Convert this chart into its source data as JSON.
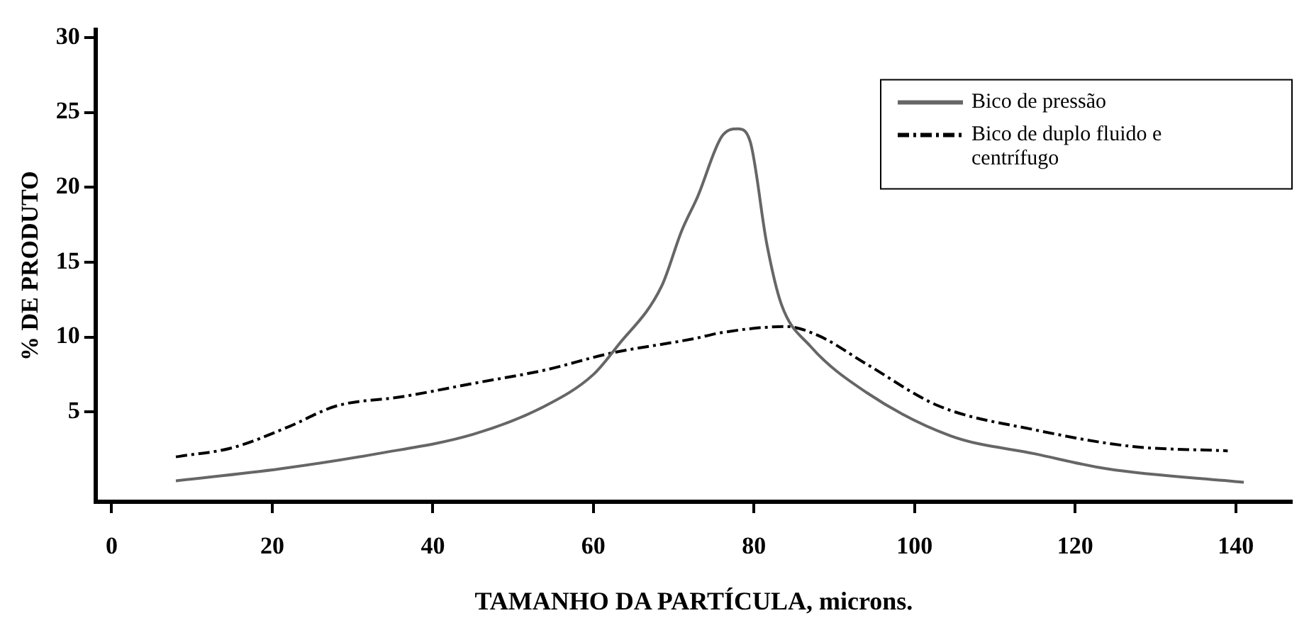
{
  "chart_data": {
    "type": "line",
    "xlabel": "TAMANHO DA PARTÍCULA, microns.",
    "ylabel": "% DE PRODUTO",
    "xlim": [
      -2,
      147
    ],
    "xticks": [
      0,
      20,
      40,
      60,
      80,
      100,
      120,
      140
    ],
    "ylim": [
      -1,
      30.5
    ],
    "yticks": [
      5,
      10,
      15,
      20,
      25,
      30
    ],
    "grid": false,
    "legend": "top right",
    "marker": "none",
    "series": [
      {
        "name": "Bico de pressão",
        "color": "#666666",
        "line_style": "solid",
        "x": [
          8,
          21,
          33,
          45,
          54,
          60,
          63,
          68.5,
          71,
          73,
          76,
          78,
          79.5,
          81.6,
          83.4,
          87,
          94,
          104.5,
          115,
          124,
          141
        ],
        "values": [
          0.4,
          1.2,
          2.2,
          3.5,
          5.4,
          7.5,
          9.4,
          13.4,
          17.1,
          19.4,
          23.4,
          23.9,
          23.1,
          16.2,
          12.2,
          9.4,
          6.3,
          3.4,
          2.2,
          1.2,
          0.3
        ]
      },
      {
        "name": "Bico de duplo fluido e centrífugo",
        "color": "#000000",
        "line_style": "dashed",
        "x": [
          8,
          15,
          22,
          28,
          36,
          45,
          54,
          62,
          72.6,
          76,
          84,
          88,
          94,
          103,
          115,
          127,
          139
        ],
        "values": [
          2.0,
          2.6,
          4.0,
          5.4,
          6.0,
          6.9,
          7.8,
          8.9,
          9.9,
          10.3,
          10.7,
          10.1,
          8.2,
          5.4,
          3.8,
          2.7,
          2.4
        ]
      }
    ]
  }
}
